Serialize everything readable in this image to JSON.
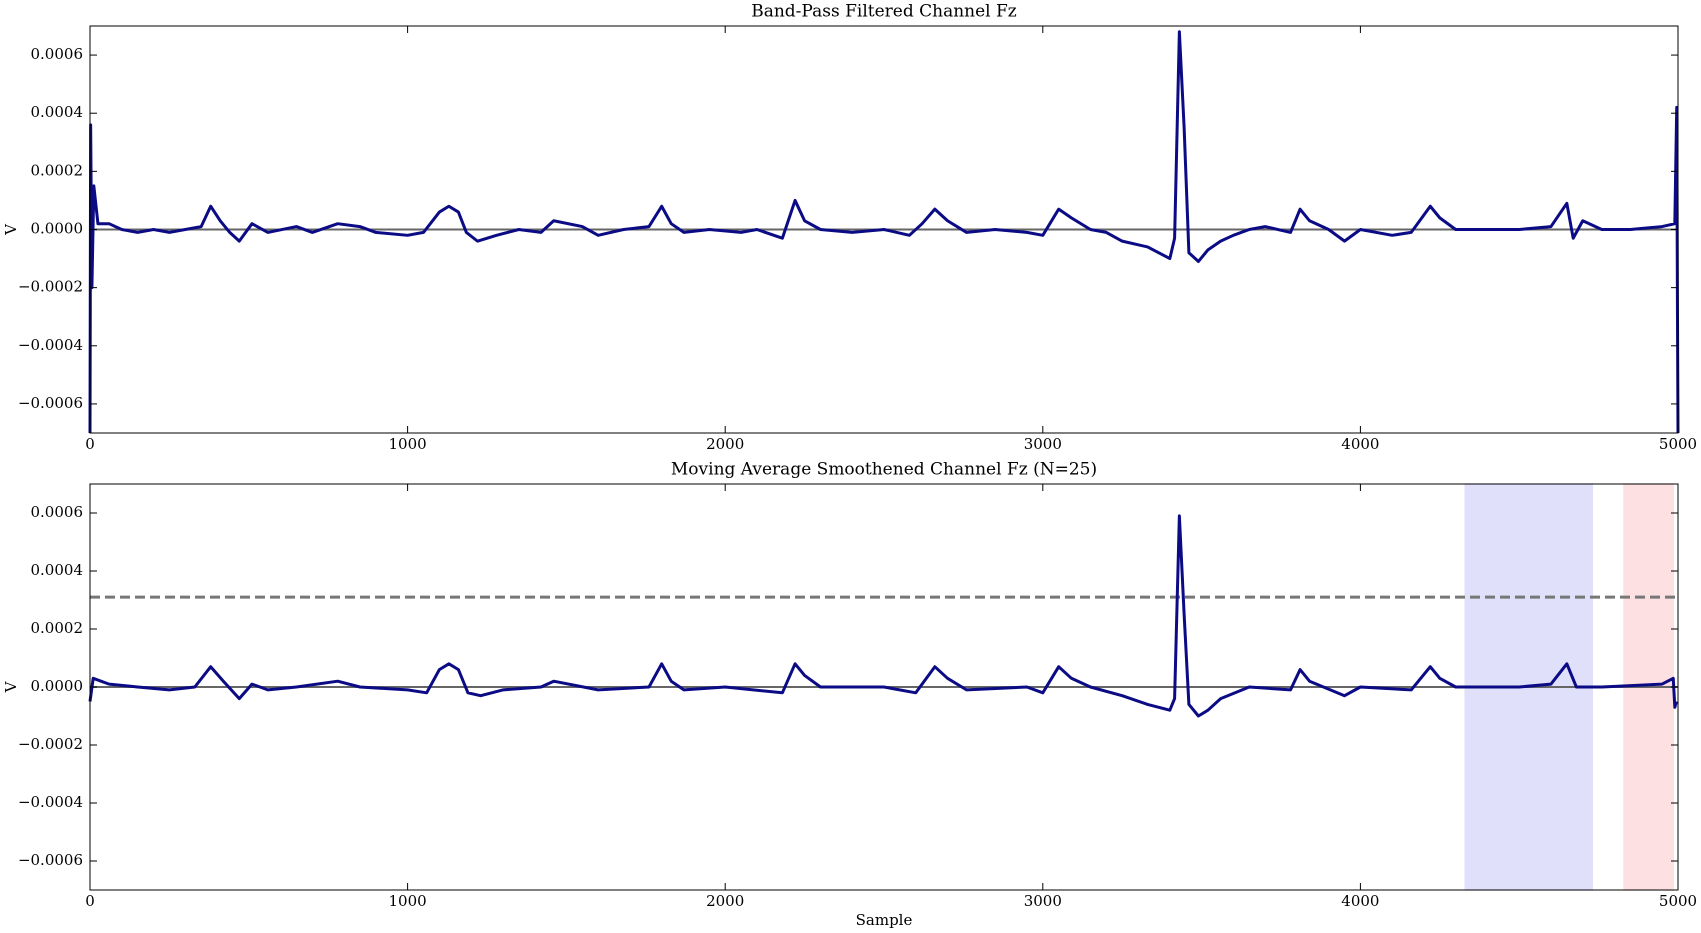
{
  "chart_data": [
    {
      "type": "line",
      "title": "Band-Pass Filtered Channel Fz",
      "ylabel": "V",
      "xlim": [
        0,
        5000
      ],
      "xticks": [
        0,
        1000,
        2000,
        3000,
        4000,
        5000
      ],
      "ylim": [
        -0.0007,
        0.0007
      ],
      "yticks": [
        {
          "value": -0.0006,
          "label": "−0.0006"
        },
        {
          "value": -0.0004,
          "label": "−0.0004"
        },
        {
          "value": -0.0002,
          "label": "−0.0002"
        },
        {
          "value": 0,
          "label": "0.0000"
        },
        0.0002,
        0.0004,
        0.0006
      ],
      "reference_line": 0,
      "series": [
        {
          "color": "#0b0b85",
          "x": [
            0,
            2,
            6,
            12,
            25,
            60,
            100,
            150,
            200,
            250,
            300,
            350,
            380,
            410,
            440,
            470,
            510,
            560,
            650,
            700,
            780,
            850,
            900,
            1000,
            1050,
            1100,
            1130,
            1160,
            1185,
            1220,
            1280,
            1350,
            1420,
            1460,
            1550,
            1600,
            1680,
            1760,
            1800,
            1830,
            1870,
            1950,
            2050,
            2100,
            2180,
            2220,
            2250,
            2300,
            2400,
            2500,
            2580,
            2620,
            2660,
            2700,
            2760,
            2850,
            2950,
            3000,
            3050,
            3090,
            3150,
            3200,
            3250,
            3330,
            3400,
            3415,
            3430,
            3445,
            3460,
            3490,
            3520,
            3560,
            3600,
            3650,
            3700,
            3780,
            3810,
            3840,
            3900,
            3950,
            4000,
            4100,
            4160,
            4220,
            4250,
            4300,
            4400,
            4500,
            4600,
            4650,
            4670,
            4700,
            4760,
            4850,
            4950,
            4990,
            4996,
            4998,
            5000
          ],
          "values": [
            -0.0007,
            0.00036,
            -0.0002,
            0.00015,
            2e-05,
            2e-05,
            0.0,
            -1e-05,
            0.0,
            -1e-05,
            0.0,
            1e-05,
            8e-05,
            3e-05,
            -1e-05,
            -4e-05,
            2e-05,
            -1e-05,
            1e-05,
            -1e-05,
            2e-05,
            1e-05,
            -1e-05,
            -2e-05,
            -1e-05,
            6e-05,
            8e-05,
            6e-05,
            -1e-05,
            -4e-05,
            -2e-05,
            0.0,
            -1e-05,
            3e-05,
            1e-05,
            -2e-05,
            0.0,
            1e-05,
            8e-05,
            2e-05,
            -1e-05,
            0.0,
            -1e-05,
            0.0,
            -3e-05,
            0.0001,
            3e-05,
            0.0,
            -1e-05,
            0.0,
            -2e-05,
            2e-05,
            7e-05,
            3e-05,
            -1e-05,
            0.0,
            -1e-05,
            -2e-05,
            7e-05,
            4e-05,
            0.0,
            -1e-05,
            -4e-05,
            -6e-05,
            -0.0001,
            -3e-05,
            0.00068,
            0.00035,
            -8e-05,
            -0.00011,
            -7e-05,
            -4e-05,
            -2e-05,
            0.0,
            1e-05,
            -1e-05,
            7e-05,
            3e-05,
            0.0,
            -4e-05,
            0.0,
            -2e-05,
            -1e-05,
            8e-05,
            4e-05,
            0.0,
            0.0,
            0.0,
            1e-05,
            9e-05,
            -3e-05,
            3e-05,
            0.0,
            0.0,
            1e-05,
            2e-05,
            0.00042,
            -0.0002,
            -0.0007
          ]
        }
      ]
    },
    {
      "type": "line",
      "title": "Moving Average Smoothened Channel Fz (N=25)",
      "xlabel": "Sample",
      "ylabel": "V",
      "xlim": [
        0,
        5000
      ],
      "xticks": [
        0,
        1000,
        2000,
        3000,
        4000,
        5000
      ],
      "ylim": [
        -0.0007,
        0.0007
      ],
      "yticks": [
        {
          "value": -0.0006,
          "label": "−0.0006"
        },
        {
          "value": -0.0004,
          "label": "−0.0004"
        },
        {
          "value": -0.0002,
          "label": "−0.0002"
        },
        {
          "value": 0,
          "label": "0.0000"
        },
        0.0002,
        0.0004,
        0.0006
      ],
      "reference_line": 0,
      "threshold": 0.00031,
      "spans": [
        {
          "range": [
            4330,
            4730
          ],
          "color": "#e0e0fb"
        },
        {
          "range": [
            4830,
            4985
          ],
          "color": "#fde0e2"
        }
      ],
      "series": [
        {
          "color": "#0b0b85",
          "x": [
            0,
            10,
            60,
            150,
            250,
            330,
            380,
            420,
            470,
            510,
            560,
            650,
            780,
            850,
            1000,
            1060,
            1100,
            1130,
            1160,
            1190,
            1230,
            1300,
            1420,
            1460,
            1600,
            1760,
            1800,
            1830,
            1870,
            2000,
            2180,
            2220,
            2250,
            2300,
            2500,
            2600,
            2660,
            2700,
            2760,
            2950,
            3000,
            3050,
            3090,
            3150,
            3250,
            3330,
            3400,
            3415,
            3430,
            3445,
            3460,
            3490,
            3520,
            3560,
            3650,
            3780,
            3810,
            3840,
            3950,
            4000,
            4160,
            4220,
            4250,
            4300,
            4500,
            4600,
            4650,
            4680,
            4760,
            4950,
            4985,
            4990,
            4995
          ],
          "values": [
            -5e-05,
            3e-05,
            1e-05,
            0.0,
            -1e-05,
            0.0,
            7e-05,
            2e-05,
            -4e-05,
            1e-05,
            -1e-05,
            0.0,
            2e-05,
            0.0,
            -1e-05,
            -2e-05,
            6e-05,
            8e-05,
            6e-05,
            -2e-05,
            -3e-05,
            -1e-05,
            0.0,
            2e-05,
            -1e-05,
            0.0,
            8e-05,
            2e-05,
            -1e-05,
            0.0,
            -2e-05,
            8e-05,
            4e-05,
            0.0,
            0.0,
            -2e-05,
            7e-05,
            3e-05,
            -1e-05,
            0.0,
            -2e-05,
            7e-05,
            3e-05,
            0.0,
            -3e-05,
            -6e-05,
            -8e-05,
            -4e-05,
            0.00059,
            0.00025,
            -6e-05,
            -0.0001,
            -8e-05,
            -4e-05,
            0.0,
            -1e-05,
            6e-05,
            2e-05,
            -3e-05,
            0.0,
            -1e-05,
            7e-05,
            3e-05,
            0.0,
            0.0,
            1e-05,
            8e-05,
            0.0,
            0.0,
            1e-05,
            3e-05,
            -7e-05,
            -5e-05
          ]
        }
      ]
    }
  ]
}
